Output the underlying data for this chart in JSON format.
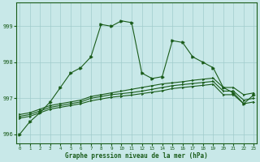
{
  "xlabel": "Graphe pression niveau de la mer (hPa)",
  "background_color": "#c8e8e8",
  "grid_color": "#a0cccc",
  "line_color": "#1a5c1a",
  "ylim": [
    995.75,
    999.65
  ],
  "xlim": [
    -0.3,
    23.3
  ],
  "yticks": [
    996,
    997,
    998,
    999
  ],
  "xticks": [
    0,
    1,
    2,
    3,
    4,
    5,
    6,
    7,
    8,
    9,
    10,
    11,
    12,
    13,
    14,
    15,
    16,
    17,
    18,
    19,
    20,
    21,
    22,
    23
  ],
  "series1": [
    996.0,
    996.35,
    996.6,
    996.9,
    997.3,
    997.7,
    997.85,
    998.15,
    999.05,
    999.0,
    999.15,
    999.1,
    997.7,
    997.55,
    997.6,
    998.6,
    998.55,
    998.15,
    998.0,
    997.85,
    997.3,
    997.15,
    996.85,
    997.1
  ],
  "series2": [
    996.55,
    996.6,
    996.7,
    996.8,
    996.85,
    996.9,
    996.95,
    997.05,
    997.1,
    997.15,
    997.2,
    997.25,
    997.3,
    997.35,
    997.4,
    997.43,
    997.46,
    997.5,
    997.53,
    997.56,
    997.3,
    997.3,
    997.1,
    997.15
  ],
  "series3": [
    996.5,
    996.55,
    996.65,
    996.75,
    996.8,
    996.85,
    996.9,
    997.0,
    997.05,
    997.1,
    997.13,
    997.16,
    997.2,
    997.25,
    997.3,
    997.35,
    997.38,
    997.41,
    997.44,
    997.47,
    997.2,
    997.2,
    996.95,
    997.0
  ],
  "series4": [
    996.45,
    996.5,
    996.6,
    996.7,
    996.75,
    996.8,
    996.85,
    996.93,
    996.98,
    997.03,
    997.06,
    997.09,
    997.13,
    997.17,
    997.21,
    997.27,
    997.3,
    997.33,
    997.36,
    997.39,
    997.1,
    997.1,
    996.85,
    996.9
  ]
}
